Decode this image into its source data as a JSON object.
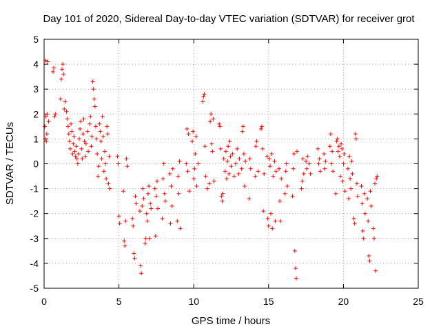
{
  "chart_data": {
    "type": "scatter",
    "title": "Day 101 of 2020, Sidereal Day-to-day VTEC variation (SDTVAR) for receiver grot",
    "xlabel": "GPS time / hours",
    "ylabel": "SDTVAR / TECUs",
    "xlim": [
      0,
      25
    ],
    "ylim": [
      -5,
      5
    ],
    "x_ticks": [
      "0",
      "5",
      "10",
      "15",
      "20",
      "25"
    ],
    "y_ticks": [
      "5",
      "4",
      "3",
      "2",
      "1",
      "0",
      "-1",
      "-2",
      "-3",
      "-4",
      "-5"
    ],
    "grid": true,
    "marker": "+",
    "series_color": "#ff0000",
    "series": [
      {
        "name": "SDTVAR",
        "points": [
          [
            0.05,
            1.5
          ],
          [
            0.08,
            1.0
          ],
          [
            0.1,
            4.15
          ],
          [
            0.12,
            1.9
          ],
          [
            0.15,
            0.9
          ],
          [
            0.18,
            1.2
          ],
          [
            0.2,
            2.0
          ],
          [
            0.25,
            4.1
          ],
          [
            0.3,
            1.7
          ],
          [
            0.6,
            3.7
          ],
          [
            0.65,
            3.85
          ],
          [
            0.7,
            1.9
          ],
          [
            0.75,
            2.0
          ],
          [
            1.1,
            2.6
          ],
          [
            1.15,
            3.4
          ],
          [
            1.2,
            3.8
          ],
          [
            1.25,
            4.0
          ],
          [
            1.3,
            3.6
          ],
          [
            1.35,
            2.2
          ],
          [
            1.4,
            2.5
          ],
          [
            1.5,
            2.1
          ],
          [
            1.55,
            1.8
          ],
          [
            1.6,
            1.5
          ],
          [
            1.65,
            1.2
          ],
          [
            1.7,
            0.9
          ],
          [
            1.75,
            0.6
          ],
          [
            1.8,
            1.6
          ],
          [
            1.85,
            1.3
          ],
          [
            1.9,
            0.4
          ],
          [
            1.95,
            0.8
          ],
          [
            2.0,
            1.1
          ],
          [
            2.05,
            0.5
          ],
          [
            2.1,
            0.3
          ],
          [
            2.15,
            0.7
          ],
          [
            2.2,
            0.2
          ],
          [
            2.25,
            0.0
          ],
          [
            2.3,
            0.4
          ],
          [
            2.35,
            1.0
          ],
          [
            2.4,
            1.4
          ],
          [
            2.45,
            1.7
          ],
          [
            2.5,
            0.6
          ],
          [
            2.55,
            0.2
          ],
          [
            2.6,
            1.2
          ],
          [
            2.65,
            1.8
          ],
          [
            2.7,
            0.9
          ],
          [
            2.75,
            0.3
          ],
          [
            2.8,
            0.8
          ],
          [
            2.9,
            1.3
          ],
          [
            2.95,
            0.5
          ],
          [
            3.05,
            1.6
          ],
          [
            3.1,
            1.9
          ],
          [
            3.15,
            0.7
          ],
          [
            3.2,
            1.1
          ],
          [
            3.25,
            3.3
          ],
          [
            3.3,
            3.0
          ],
          [
            3.35,
            2.6
          ],
          [
            3.4,
            2.3
          ],
          [
            3.45,
            1.5
          ],
          [
            3.5,
            1.0
          ],
          [
            3.55,
            0.4
          ],
          [
            3.6,
            -0.5
          ],
          [
            3.65,
            -0.1
          ],
          [
            3.7,
            1.6
          ],
          [
            3.75,
            1.3
          ],
          [
            3.8,
            0.9
          ],
          [
            3.85,
            0.2
          ],
          [
            3.9,
            1.9
          ],
          [
            3.95,
            1.1
          ],
          [
            4.0,
            -0.3
          ],
          [
            4.05,
            0.5
          ],
          [
            4.1,
            0.0
          ],
          [
            4.15,
            -0.6
          ],
          [
            4.2,
            1.5
          ],
          [
            4.25,
            1.2
          ],
          [
            4.3,
            -0.8
          ],
          [
            4.35,
            0.3
          ],
          [
            4.4,
            -1.0
          ],
          [
            4.9,
            0.3
          ],
          [
            4.95,
            0.0
          ],
          [
            5.0,
            -2.1
          ],
          [
            5.05,
            -2.4
          ],
          [
            5.3,
            -1.1
          ],
          [
            5.35,
            -3.1
          ],
          [
            5.4,
            -3.3
          ],
          [
            5.45,
            -2.3
          ],
          [
            5.5,
            0.2
          ],
          [
            5.55,
            -0.1
          ],
          [
            5.9,
            -2.2
          ],
          [
            5.95,
            -2.5
          ],
          [
            6.0,
            -3.6
          ],
          [
            6.05,
            -3.8
          ],
          [
            6.1,
            -1.3
          ],
          [
            6.15,
            -1.6
          ],
          [
            6.4,
            -1.9
          ],
          [
            6.45,
            -4.1
          ],
          [
            6.5,
            -4.4
          ],
          [
            6.55,
            -1.7
          ],
          [
            6.6,
            -1.0
          ],
          [
            6.65,
            -1.4
          ],
          [
            6.75,
            -3.2
          ],
          [
            6.8,
            -3.0
          ],
          [
            6.85,
            -2.0
          ],
          [
            6.9,
            -2.3
          ],
          [
            6.95,
            -1.2
          ],
          [
            7.0,
            -0.9
          ],
          [
            7.05,
            -3.0
          ],
          [
            7.1,
            -1.6
          ],
          [
            7.15,
            -1.8
          ],
          [
            7.4,
            -1.0
          ],
          [
            7.45,
            -2.9
          ],
          [
            7.5,
            -1.3
          ],
          [
            7.55,
            -0.7
          ],
          [
            7.6,
            -1.8
          ],
          [
            7.9,
            -2.2
          ],
          [
            7.95,
            -0.6
          ],
          [
            8.0,
            0.0
          ],
          [
            8.05,
            -1.2
          ],
          [
            8.1,
            -1.5
          ],
          [
            8.4,
            -0.4
          ],
          [
            8.45,
            -2.4
          ],
          [
            8.5,
            -0.9
          ],
          [
            8.55,
            -1.7
          ],
          [
            8.6,
            -0.2
          ],
          [
            8.9,
            -2.3
          ],
          [
            8.95,
            -0.5
          ],
          [
            9.0,
            -1.2
          ],
          [
            9.05,
            0.1
          ],
          [
            9.1,
            -2.6
          ],
          [
            9.5,
            0.0
          ],
          [
            9.55,
            1.4
          ],
          [
            9.6,
            -0.3
          ],
          [
            9.65,
            1.2
          ],
          [
            9.7,
            -1.1
          ],
          [
            9.9,
            0.9
          ],
          [
            9.95,
            1.3
          ],
          [
            10.0,
            -0.6
          ],
          [
            10.05,
            -0.2
          ],
          [
            10.1,
            0.4
          ],
          [
            10.15,
            1.1
          ],
          [
            10.2,
            -0.9
          ],
          [
            10.3,
            0.0
          ],
          [
            10.6,
            2.5
          ],
          [
            10.65,
            2.7
          ],
          [
            10.7,
            2.8
          ],
          [
            10.75,
            0.7
          ],
          [
            10.8,
            -0.5
          ],
          [
            10.9,
            -1.0
          ],
          [
            11.05,
            -0.8
          ],
          [
            11.1,
            1.7
          ],
          [
            11.15,
            2.0
          ],
          [
            11.2,
            0.8
          ],
          [
            11.25,
            0.5
          ],
          [
            11.3,
            1.8
          ],
          [
            11.35,
            -0.7
          ],
          [
            11.7,
            1.6
          ],
          [
            11.75,
            1.5
          ],
          [
            11.8,
            0.6
          ],
          [
            11.85,
            -1.3
          ],
          [
            11.9,
            -1.5
          ],
          [
            11.95,
            -1.2
          ],
          [
            12.0,
            0.2
          ],
          [
            12.1,
            -0.3
          ],
          [
            12.15,
            0.5
          ],
          [
            12.2,
            -0.6
          ],
          [
            12.25,
            0.1
          ],
          [
            12.3,
            0.7
          ],
          [
            12.35,
            -0.4
          ],
          [
            12.4,
            0.9
          ],
          [
            12.45,
            0.3
          ],
          [
            12.5,
            -0.1
          ],
          [
            12.6,
            0.4
          ],
          [
            12.7,
            -0.5
          ],
          [
            12.8,
            0.0
          ],
          [
            12.9,
            0.6
          ],
          [
            13.0,
            -0.4
          ],
          [
            13.05,
            0.2
          ],
          [
            13.2,
            -0.2
          ],
          [
            13.25,
            1.3
          ],
          [
            13.3,
            1.5
          ],
          [
            13.35,
            0.4
          ],
          [
            13.4,
            -0.9
          ],
          [
            13.45,
            0.1
          ],
          [
            13.7,
            -1.4
          ],
          [
            13.75,
            0.2
          ],
          [
            13.8,
            -0.2
          ],
          [
            14.1,
            -0.5
          ],
          [
            14.15,
            0.7
          ],
          [
            14.2,
            0.9
          ],
          [
            14.3,
            -0.3
          ],
          [
            14.5,
            1.4
          ],
          [
            14.55,
            1.5
          ],
          [
            14.6,
            0.6
          ],
          [
            14.65,
            -1.9
          ],
          [
            14.7,
            -0.4
          ],
          [
            14.9,
            0.3
          ],
          [
            14.95,
            -2.2
          ],
          [
            15.0,
            -2.5
          ],
          [
            15.05,
            0.2
          ],
          [
            15.1,
            -0.1
          ],
          [
            15.15,
            -2.0
          ],
          [
            15.2,
            0.4
          ],
          [
            15.25,
            -2.6
          ],
          [
            15.3,
            -0.5
          ],
          [
            15.4,
            0.1
          ],
          [
            15.45,
            -2.3
          ],
          [
            15.5,
            -0.3
          ],
          [
            15.7,
            -0.2
          ],
          [
            15.75,
            -1.5
          ],
          [
            15.8,
            -2.3
          ],
          [
            15.85,
            -0.6
          ],
          [
            16.1,
            -1.2
          ],
          [
            16.15,
            -0.3
          ],
          [
            16.2,
            0.0
          ],
          [
            16.25,
            -0.9
          ],
          [
            16.6,
            -1.3
          ],
          [
            16.65,
            -0.2
          ],
          [
            16.7,
            0.4
          ],
          [
            16.75,
            -3.5
          ],
          [
            16.8,
            -4.2
          ],
          [
            16.85,
            -4.6
          ],
          [
            16.9,
            0.5
          ],
          [
            17.2,
            -1.0
          ],
          [
            17.25,
            -0.7
          ],
          [
            17.3,
            0.2
          ],
          [
            17.35,
            -0.4
          ],
          [
            17.5,
            0.1
          ],
          [
            17.55,
            -0.2
          ],
          [
            17.6,
            0.3
          ],
          [
            17.7,
            0.0
          ],
          [
            17.8,
            -0.4
          ],
          [
            18.3,
            0.6
          ],
          [
            18.35,
            0.0
          ],
          [
            18.4,
            0.2
          ],
          [
            18.45,
            -0.3
          ],
          [
            18.7,
            0.4
          ],
          [
            18.75,
            -0.2
          ],
          [
            18.8,
            0.1
          ],
          [
            19.1,
            0.7
          ],
          [
            19.15,
            1.2
          ],
          [
            19.2,
            0.0
          ],
          [
            19.25,
            0.5
          ],
          [
            19.3,
            -0.3
          ],
          [
            19.5,
            -1.2
          ],
          [
            19.55,
            0.9
          ],
          [
            19.6,
            1.0
          ],
          [
            19.65,
            0.5
          ],
          [
            19.7,
            0.7
          ],
          [
            19.75,
            0.3
          ],
          [
            19.8,
            -0.5
          ],
          [
            19.85,
            0.8
          ],
          [
            19.9,
            0.6
          ],
          [
            19.95,
            -0.7
          ],
          [
            20.0,
            0.0
          ],
          [
            20.05,
            0.4
          ],
          [
            20.1,
            -1.1
          ],
          [
            20.3,
            -0.2
          ],
          [
            20.35,
            -1.4
          ],
          [
            20.4,
            0.3
          ],
          [
            20.45,
            -0.6
          ],
          [
            20.5,
            -1.0
          ],
          [
            20.55,
            0.1
          ],
          [
            20.6,
            -0.4
          ],
          [
            20.7,
            -2.2
          ],
          [
            20.75,
            -2.4
          ],
          [
            20.8,
            1.2
          ],
          [
            20.85,
            1.0
          ],
          [
            20.9,
            -0.8
          ],
          [
            20.95,
            -1.3
          ],
          [
            21.2,
            -0.9
          ],
          [
            21.25,
            -1.6
          ],
          [
            21.3,
            -2.7
          ],
          [
            21.35,
            -3.0
          ],
          [
            21.4,
            -1.2
          ],
          [
            21.45,
            -2.0
          ],
          [
            21.6,
            -1.4
          ],
          [
            21.65,
            -2.3
          ],
          [
            21.7,
            -3.7
          ],
          [
            21.75,
            -3.9
          ],
          [
            21.8,
            -1.1
          ],
          [
            21.85,
            -1.7
          ],
          [
            22.0,
            -2.6
          ],
          [
            22.05,
            -3.0
          ],
          [
            22.1,
            -0.8
          ],
          [
            22.15,
            -4.3
          ],
          [
            22.2,
            -0.6
          ],
          [
            22.25,
            -0.5
          ]
        ]
      }
    ]
  }
}
